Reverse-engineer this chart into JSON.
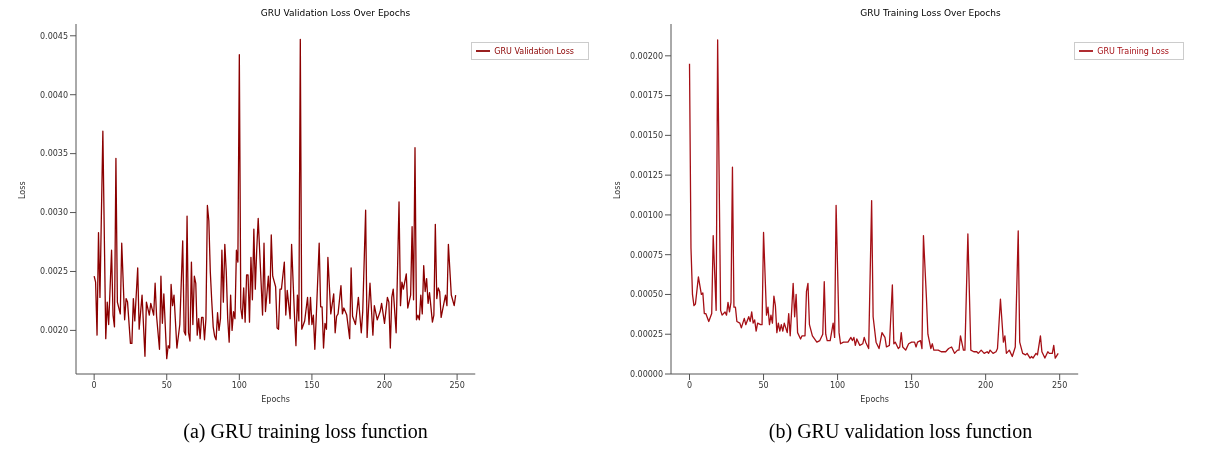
{
  "chart_data": [
    {
      "type": "line",
      "title": "GRU Validation Loss Over Epochs",
      "xlabel": "Epochs",
      "ylabel": "Loss",
      "legend": "top right",
      "marker": "none",
      "line_style": "solid",
      "annotations": [
        "(a) GRU training loss function"
      ],
      "xlim": [
        -12.5,
        262.5
      ],
      "xticks": [
        0,
        50,
        100,
        150,
        200,
        250
      ],
      "ylim": [
        0.00163,
        0.0046
      ],
      "yticks": [
        {
          "value": 0.002,
          "label": "0.0020"
        },
        {
          "value": 0.0025,
          "label": "0.0025"
        },
        {
          "value": 0.003,
          "label": "0.0030"
        },
        {
          "value": 0.0035,
          "label": "0.0035"
        },
        {
          "value": 0.004,
          "label": "0.0040"
        },
        {
          "value": 0.0045,
          "label": "0.0045"
        }
      ],
      "series": [
        {
          "name": "GRU Validation Loss",
          "color": "#8b0000",
          "x": [
            0,
            1,
            2,
            3,
            4,
            6,
            8,
            9,
            10,
            12,
            13,
            14,
            15,
            16,
            18,
            19,
            21,
            22,
            23,
            25,
            26,
            27,
            28,
            30,
            31,
            33,
            35,
            36,
            38,
            39,
            41,
            42,
            43,
            45,
            46,
            47,
            48,
            50,
            51,
            52,
            53,
            54,
            55,
            57,
            59,
            61,
            62,
            63,
            64,
            65,
            66,
            67,
            68,
            69,
            70,
            71,
            72,
            73,
            74,
            75,
            76,
            77,
            78,
            79,
            80,
            81,
            82,
            83,
            84,
            85,
            86,
            87,
            88,
            89,
            90,
            91,
            92,
            93,
            94,
            95,
            96,
            97,
            98,
            99,
            100,
            101,
            102,
            103,
            104,
            105,
            106,
            107,
            108,
            109,
            110,
            111,
            112,
            113,
            116,
            117,
            118,
            120,
            121,
            122,
            123,
            125,
            126,
            127,
            128,
            129,
            131,
            132,
            133,
            135,
            136,
            138,
            139,
            140,
            141,
            142,
            143,
            145,
            147,
            148,
            149,
            150,
            151,
            152,
            153,
            155,
            156,
            157,
            158,
            159,
            160,
            161,
            163,
            165,
            166,
            167,
            168,
            170,
            171,
            172,
            174,
            176,
            177,
            178,
            180,
            182,
            184,
            185,
            187,
            188,
            189,
            190,
            192,
            193,
            195,
            197,
            198,
            200,
            202,
            203,
            204,
            205,
            206,
            208,
            210,
            211,
            212,
            213,
            215,
            216,
            218,
            219,
            220,
            221,
            222,
            223,
            224,
            225,
            226,
            227,
            228,
            229,
            230,
            231,
            233,
            234,
            235,
            236,
            237,
            238,
            239,
            242,
            243,
            244,
            246,
            248,
            249
          ],
          "values": [
            0.00246,
            0.00241,
            0.00196,
            0.00283,
            0.00228,
            0.00369,
            0.00193,
            0.00224,
            0.00205,
            0.00268,
            0.00213,
            0.00203,
            0.00346,
            0.00224,
            0.00214,
            0.00274,
            0.00209,
            0.00227,
            0.00224,
            0.00189,
            0.00189,
            0.00227,
            0.00208,
            0.00253,
            0.00201,
            0.0023,
            0.00178,
            0.00224,
            0.00213,
            0.00223,
            0.00213,
            0.0024,
            0.00212,
            0.00184,
            0.00246,
            0.00206,
            0.00231,
            0.00176,
            0.00187,
            0.00185,
            0.00239,
            0.00221,
            0.0023,
            0.00185,
            0.00205,
            0.00276,
            0.00199,
            0.00196,
            0.00297,
            0.00198,
            0.00191,
            0.00258,
            0.00205,
            0.00246,
            0.0024,
            0.00196,
            0.0021,
            0.00193,
            0.00211,
            0.00211,
            0.00192,
            0.0021,
            0.00306,
            0.00293,
            0.0025,
            0.00225,
            0.00203,
            0.00195,
            0.00192,
            0.00215,
            0.002,
            0.0021,
            0.00268,
            0.00224,
            0.00273,
            0.0025,
            0.0021,
            0.0019,
            0.0023,
            0.002,
            0.00216,
            0.0021,
            0.00268,
            0.00258,
            0.00434,
            0.00219,
            0.0021,
            0.00236,
            0.00207,
            0.00247,
            0.00247,
            0.00207,
            0.00262,
            0.00226,
            0.00286,
            0.00235,
            0.00269,
            0.00295,
            0.00213,
            0.00274,
            0.00216,
            0.00246,
            0.00223,
            0.00281,
            0.00246,
            0.00237,
            0.00202,
            0.00201,
            0.00235,
            0.00235,
            0.00258,
            0.00213,
            0.00234,
            0.0021,
            0.00273,
            0.00212,
            0.00187,
            0.0023,
            0.00208,
            0.00447,
            0.00201,
            0.00208,
            0.00228,
            0.00205,
            0.00228,
            0.00205,
            0.00213,
            0.00184,
            0.00212,
            0.00274,
            0.0022,
            0.0022,
            0.00185,
            0.00206,
            0.00201,
            0.00262,
            0.00214,
            0.00231,
            0.00198,
            0.00212,
            0.00214,
            0.00238,
            0.00214,
            0.00219,
            0.00213,
            0.00193,
            0.00253,
            0.00212,
            0.00205,
            0.00228,
            0.00198,
            0.00216,
            0.00302,
            0.00194,
            0.00219,
            0.0024,
            0.00196,
            0.00221,
            0.00209,
            0.00216,
            0.00223,
            0.00206,
            0.00228,
            0.00224,
            0.00185,
            0.00228,
            0.00235,
            0.00198,
            0.00309,
            0.00221,
            0.00241,
            0.00235,
            0.00248,
            0.00219,
            0.0023,
            0.00288,
            0.00226,
            0.00355,
            0.00209,
            0.00213,
            0.00209,
            0.0023,
            0.00214,
            0.00255,
            0.00233,
            0.00244,
            0.00223,
            0.00232,
            0.00207,
            0.00213,
            0.0029,
            0.00227,
            0.00236,
            0.00233,
            0.00211,
            0.0023,
            0.00221,
            0.00273,
            0.0023,
            0.00221,
            0.0023
          ]
        }
      ]
    },
    {
      "type": "line",
      "title": "GRU Training Loss Over Epochs",
      "xlabel": "Epochs",
      "ylabel": "Loss",
      "legend": "top right",
      "marker": "none",
      "line_style": "solid",
      "annotations": [
        "(b) GRU validation loss function"
      ],
      "xlim": [
        -12.5,
        262.5
      ],
      "xticks": [
        0,
        50,
        100,
        150,
        200,
        250
      ],
      "ylim": [
        0,
        0.0022
      ],
      "yticks": [
        {
          "value": 0,
          "label": "0.00000"
        },
        {
          "value": 0.00025,
          "label": "0.00025"
        },
        {
          "value": 0.0005,
          "label": "0.00050"
        },
        {
          "value": 0.00075,
          "label": "0.00075"
        },
        {
          "value": 0.001,
          "label": "0.00100"
        },
        {
          "value": 0.00125,
          "label": "0.00125"
        },
        {
          "value": 0.0015,
          "label": "0.00150"
        },
        {
          "value": 0.00175,
          "label": "0.00175"
        },
        {
          "value": 0.002,
          "label": "0.00200"
        }
      ],
      "series": [
        {
          "name": "GRU Training Loss",
          "color": "#a50f15",
          "x": [
            0,
            1,
            2,
            3,
            4,
            6,
            8,
            9,
            10,
            11,
            13,
            15,
            16,
            18,
            19,
            21,
            22,
            24,
            25,
            26,
            27,
            28,
            29,
            30,
            31,
            32,
            34,
            35,
            37,
            38,
            40,
            41,
            42,
            43,
            44,
            45,
            46,
            48,
            49,
            50,
            52,
            53,
            54,
            55,
            56,
            57,
            58,
            59,
            60,
            61,
            62,
            63,
            64,
            65,
            66,
            67,
            68,
            69,
            70,
            71,
            72,
            73,
            75,
            76,
            78,
            79,
            80,
            81,
            83,
            86,
            88,
            90,
            91,
            92,
            93,
            95,
            97,
            98,
            99,
            101,
            102,
            104,
            107,
            109,
            110,
            111,
            112,
            113,
            115,
            117,
            118,
            119,
            121,
            123,
            124,
            126,
            128,
            130,
            132,
            133,
            135,
            137,
            138,
            139,
            141,
            142,
            143,
            144,
            146,
            148,
            150,
            152,
            153,
            154,
            156,
            157,
            158,
            160,
            161,
            163,
            164,
            165,
            168,
            170,
            173,
            175,
            177,
            179,
            181,
            182,
            183,
            185,
            186,
            188,
            190,
            192,
            194,
            195,
            197,
            199,
            201,
            202,
            203,
            205,
            207,
            208,
            210,
            212,
            213,
            214,
            216,
            218,
            220,
            222,
            223,
            225,
            227,
            228,
            230,
            231,
            232,
            234,
            235,
            237,
            238,
            240,
            242,
            243,
            245,
            246,
            247,
            249
          ],
          "values": [
            0.00195,
            0.00079,
            0.0005,
            0.00043,
            0.00044,
            0.00061,
            0.0005,
            0.00051,
            0.00038,
            0.00038,
            0.00033,
            0.00038,
            0.00087,
            0.0004,
            0.0021,
            0.0004,
            0.00037,
            0.00039,
            0.00037,
            0.00045,
            0.00039,
            0.00045,
            0.0013,
            0.00042,
            0.00042,
            0.00033,
            0.00032,
            0.00029,
            0.00035,
            0.00031,
            0.00036,
            0.00033,
            0.00039,
            0.00032,
            0.00034,
            0.00027,
            0.00032,
            0.00031,
            0.00031,
            0.00089,
            0.00037,
            0.00042,
            0.00031,
            0.00037,
            0.00032,
            0.00049,
            0.00043,
            0.00026,
            0.00032,
            0.00027,
            0.00031,
            0.00027,
            0.00032,
            0.00029,
            0.00026,
            0.00038,
            0.00024,
            0.0004,
            0.00057,
            0.00036,
            0.0005,
            0.00026,
            0.00022,
            0.00024,
            0.00024,
            0.00052,
            0.00057,
            0.00031,
            0.00024,
            0.0002,
            0.00021,
            0.00025,
            0.00058,
            0.00025,
            0.00021,
            0.00021,
            0.00032,
            0.00023,
            0.00106,
            0.00026,
            0.00019,
            0.0002,
            0.0002,
            0.00023,
            0.00021,
            0.00023,
            0.00018,
            0.00022,
            0.00018,
            0.00019,
            0.00023,
            0.0002,
            0.00016,
            0.00109,
            0.00036,
            0.0002,
            0.00016,
            0.00026,
            0.00023,
            0.00017,
            0.00018,
            0.00056,
            0.00019,
            0.0002,
            0.00016,
            0.00017,
            0.00026,
            0.00017,
            0.00015,
            0.00019,
            0.0002,
            0.0002,
            0.00017,
            0.0002,
            0.00021,
            0.00016,
            0.00087,
            0.00048,
            0.00025,
            0.00016,
            0.00019,
            0.00015,
            0.00015,
            0.00014,
            0.00014,
            0.00016,
            0.00017,
            0.00013,
            0.00015,
            0.00015,
            0.00024,
            0.00015,
            0.00015,
            0.00088,
            0.00015,
            0.00014,
            0.00014,
            0.00013,
            0.00015,
            0.00013,
            0.00014,
            0.00013,
            0.00015,
            0.00013,
            0.00014,
            0.00016,
            0.00047,
            0.0002,
            0.00024,
            0.00013,
            0.00015,
            0.00011,
            0.00017,
            0.0009,
            0.0002,
            0.00013,
            0.00012,
            0.00013,
            0.0001,
            0.00011,
            0.0001,
            0.00013,
            0.00012,
            0.00024,
            0.00014,
            0.0001,
            0.00014,
            0.00013,
            0.00013,
            0.00018,
            0.0001,
            0.00013
          ]
        }
      ]
    }
  ]
}
